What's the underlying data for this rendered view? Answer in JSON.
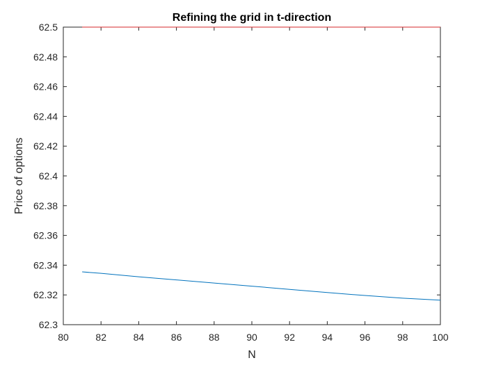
{
  "chart_data": {
    "type": "line",
    "title": "Refining the grid in t-direction",
    "xlabel": "N",
    "ylabel": "Price of options",
    "xlim": [
      80,
      100
    ],
    "ylim": [
      62.3,
      62.5
    ],
    "xticks": [
      "80",
      "82",
      "84",
      "86",
      "88",
      "90",
      "92",
      "94",
      "96",
      "98",
      "100"
    ],
    "yticks": [
      "62.3",
      "62.32",
      "62.34",
      "62.36",
      "62.38",
      "62.4",
      "62.42",
      "62.44",
      "62.46",
      "62.48",
      "62.5"
    ],
    "grid": false,
    "series": [
      {
        "color": "#0072BD",
        "x": [
          81,
          82,
          84,
          86,
          88,
          90,
          92,
          94,
          96,
          98,
          100
        ],
        "y": [
          62.3355,
          62.3345,
          62.3322,
          62.3301,
          62.328,
          62.3259,
          62.3237,
          62.3216,
          62.3196,
          62.3178,
          62.3165
        ]
      },
      {
        "color": "#D62728",
        "x": [
          81,
          100
        ],
        "y": [
          62.5,
          62.5
        ]
      }
    ]
  }
}
